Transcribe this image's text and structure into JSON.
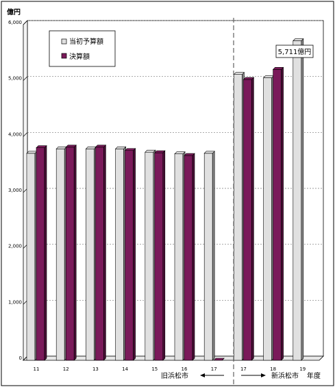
{
  "chart_data": {
    "type": "bar",
    "title": "",
    "y_unit": "億円",
    "ylim": [
      0,
      6000
    ],
    "y_ticks": [
      "0",
      "1,000",
      "2,000",
      "3,000",
      "4,000",
      "5,000",
      "6,000"
    ],
    "categories": [
      "11",
      "12",
      "13",
      "14",
      "15",
      "16",
      "17",
      "17",
      "18",
      "19"
    ],
    "series": [
      {
        "name": "当初予算額",
        "color": "#e0e0e0",
        "values": [
          3700,
          3780,
          3780,
          3780,
          3720,
          3690,
          3700,
          5110,
          5050,
          5711
        ]
      },
      {
        "name": "決算額",
        "color": "#7a1a5a",
        "values": [
          3800,
          3810,
          3810,
          3750,
          3710,
          3660,
          0,
          5020,
          5200,
          null
        ]
      }
    ],
    "legend_position": "top-left",
    "annotation": "5,711億円",
    "period_left_label": "旧浜松市",
    "period_right_label": "新浜松市",
    "xlabel": "年度",
    "gridlines": "dashed"
  }
}
